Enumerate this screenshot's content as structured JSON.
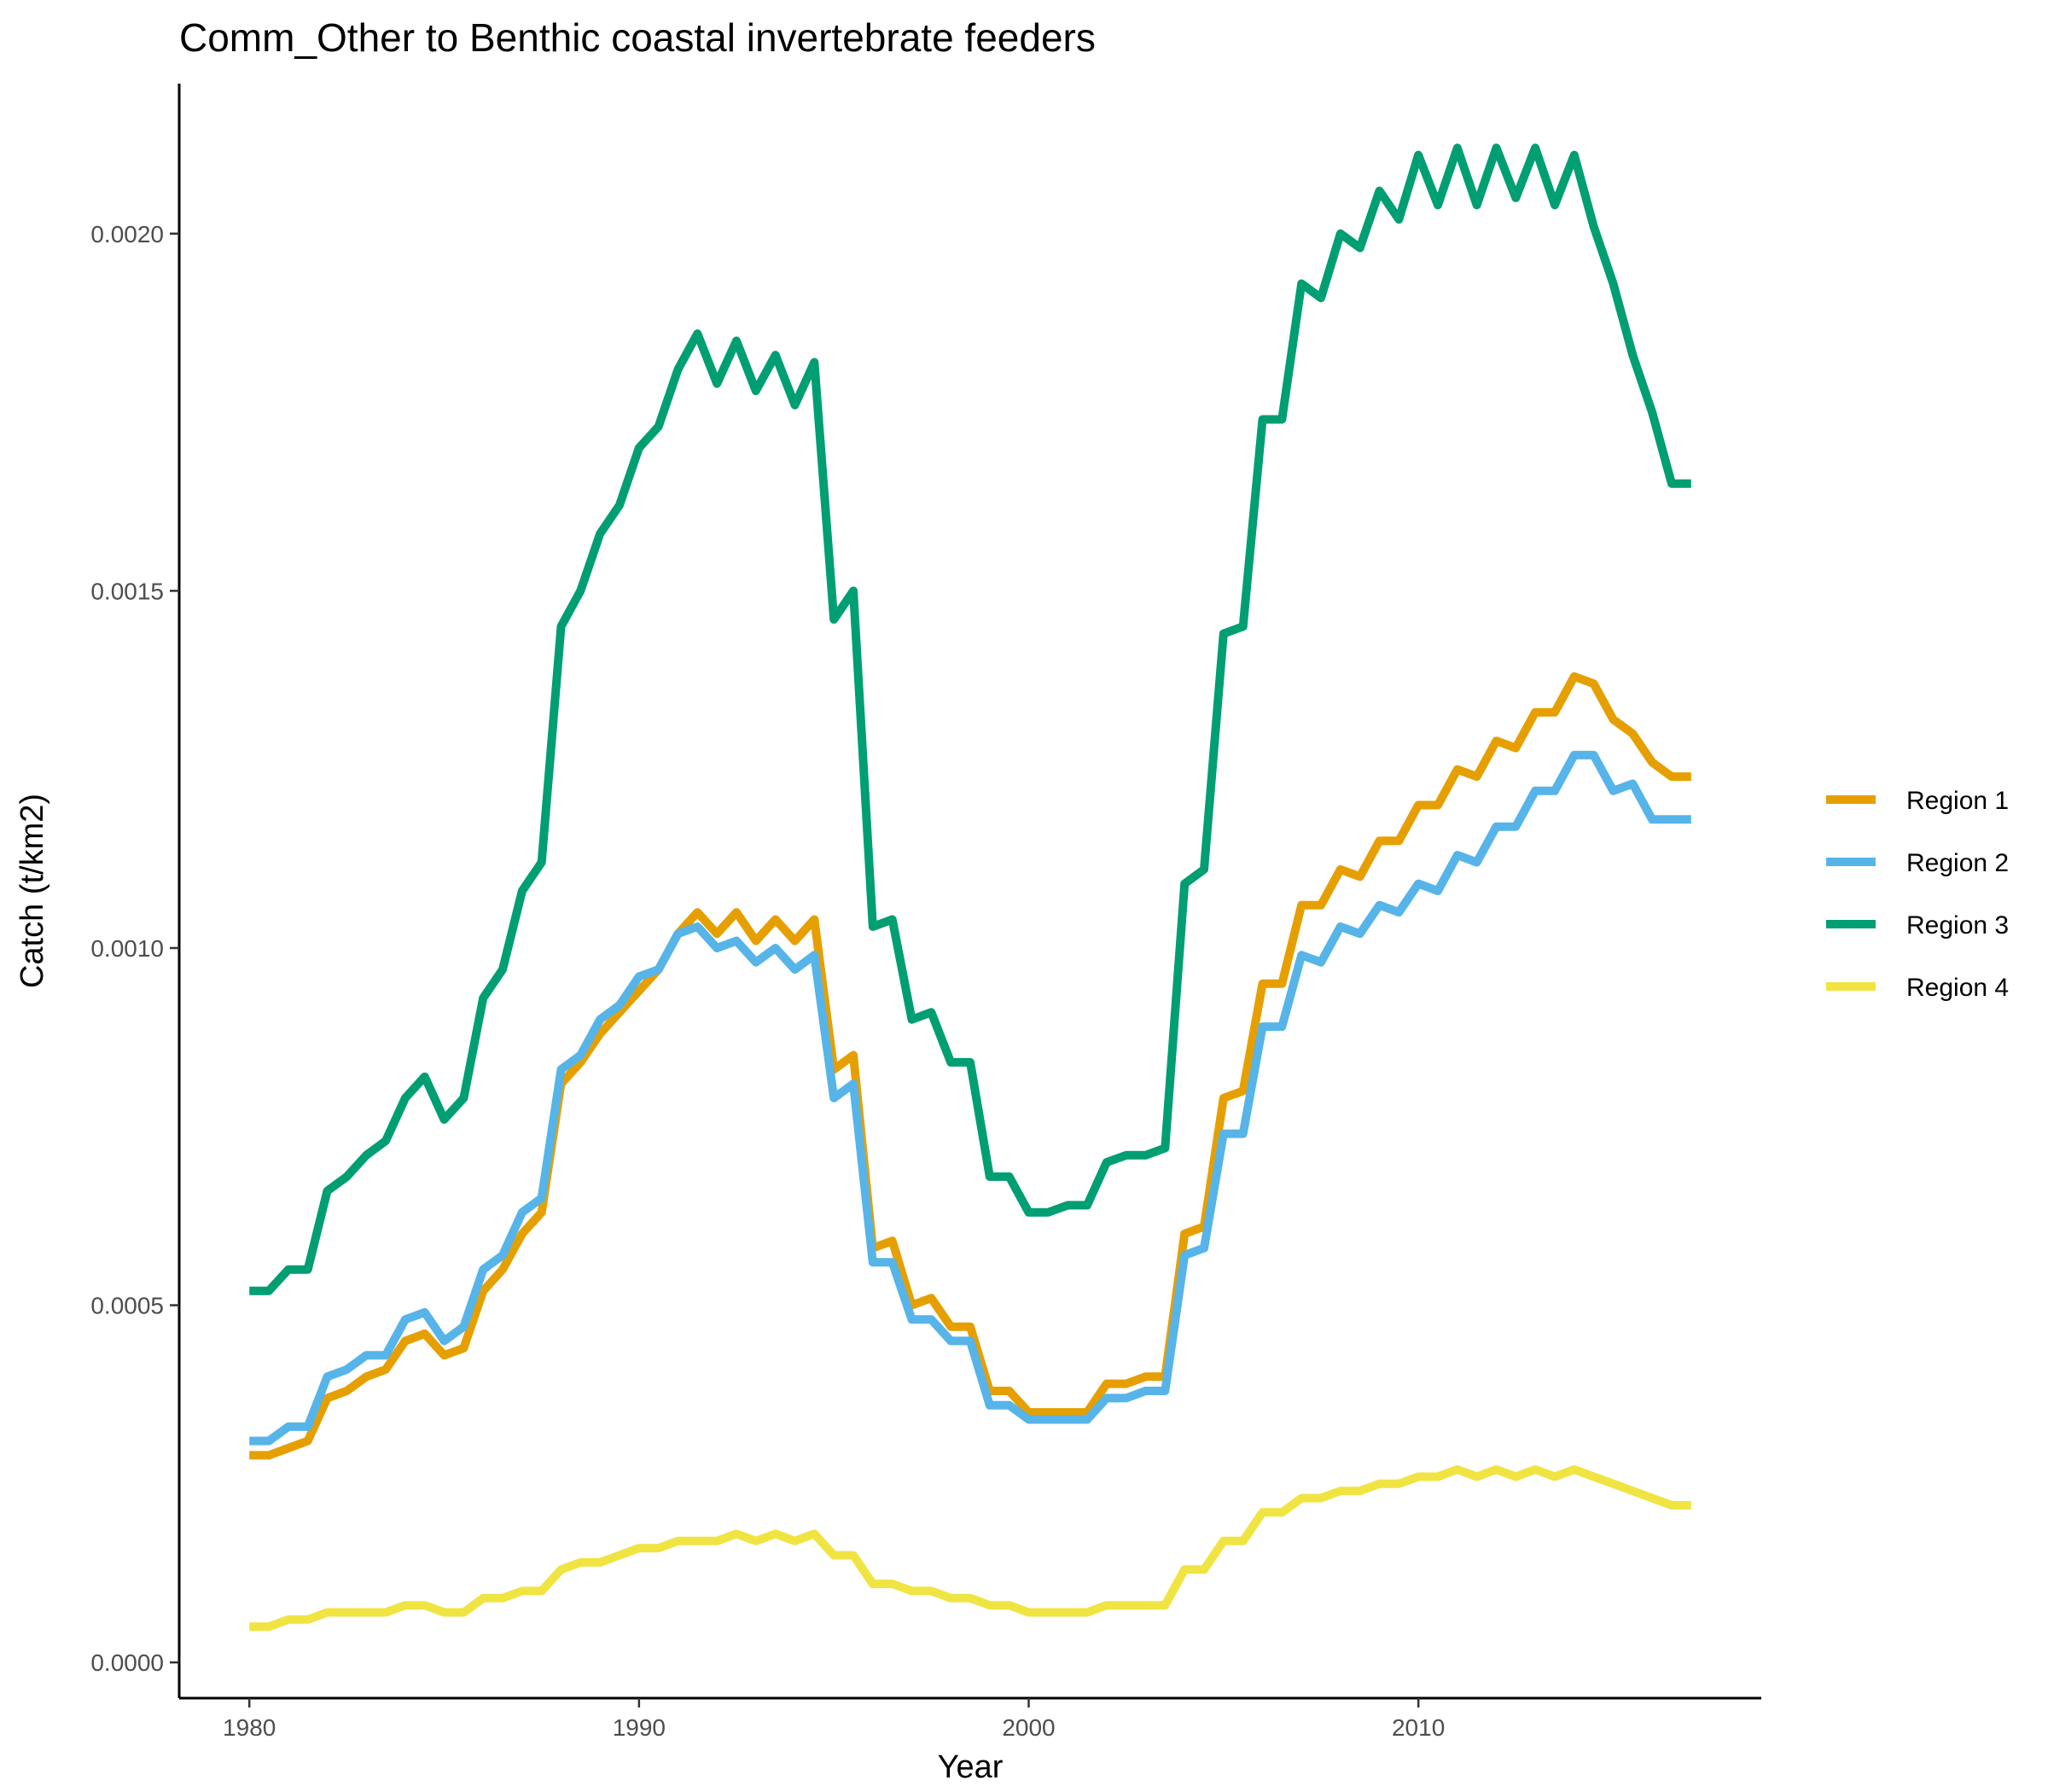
{
  "chart_data": {
    "type": "line",
    "title": "Comm_Other to Benthic coastal invertebrate feeders",
    "xlabel": "Year",
    "ylabel": "Catch (t/km2)",
    "xlim": [
      1978.2,
      2018.8
    ],
    "ylim": [
      -5e-05,
      0.00221
    ],
    "x_ticks": [
      1980,
      1990,
      2000,
      2010
    ],
    "x_tick_labels": [
      "1980",
      "1990",
      "2000",
      "2010"
    ],
    "y_ticks": [
      0.0,
      0.0005,
      0.001,
      0.0015,
      0.002
    ],
    "y_tick_labels": [
      "0.0000",
      "0.0005",
      "0.0010",
      "0.0015",
      "0.0020"
    ],
    "grid": false,
    "legend_position": "right",
    "x": [
      1980,
      1980.5,
      1981,
      1981.5,
      1982,
      1982.5,
      1983,
      1983.5,
      1984,
      1984.5,
      1985,
      1985.5,
      1986,
      1986.5,
      1987,
      1987.5,
      1988,
      1988.5,
      1989,
      1989.5,
      1990,
      1990.5,
      1991,
      1991.5,
      1992,
      1992.5,
      1993,
      1993.5,
      1994,
      1994.5,
      1995,
      1995.5,
      1996,
      1996.5,
      1997,
      1997.5,
      1998,
      1998.5,
      1999,
      1999.5,
      2000,
      2000.5,
      2001,
      2001.5,
      2002,
      2002.5,
      2003,
      2003.5,
      2004,
      2004.5,
      2005,
      2005.5,
      2006,
      2006.5,
      2007,
      2007.5,
      2008,
      2008.5,
      2009,
      2009.5,
      2010,
      2010.5,
      2011,
      2011.5,
      2012,
      2012.5,
      2013,
      2013.5,
      2014,
      2014.5,
      2015,
      2015.5,
      2016,
      2016.5,
      2017
    ],
    "series": [
      {
        "name": "Region 1",
        "color": "#E69F00",
        "values": [
          0.00029,
          0.00029,
          0.0003,
          0.00031,
          0.00037,
          0.00038,
          0.0004,
          0.00041,
          0.00045,
          0.00046,
          0.00043,
          0.00044,
          0.00052,
          0.00055,
          0.0006,
          0.00063,
          0.00081,
          0.00084,
          0.00088,
          0.00091,
          0.00094,
          0.00097,
          0.00102,
          0.00105,
          0.00102,
          0.00105,
          0.00101,
          0.00104,
          0.00101,
          0.00104,
          0.00083,
          0.00085,
          0.00058,
          0.00059,
          0.0005,
          0.00051,
          0.00047,
          0.00047,
          0.00038,
          0.00038,
          0.00035,
          0.00035,
          0.00035,
          0.00035,
          0.00039,
          0.00039,
          0.0004,
          0.0004,
          0.0006,
          0.00061,
          0.00079,
          0.0008,
          0.00095,
          0.00095,
          0.00106,
          0.00106,
          0.00111,
          0.0011,
          0.00115,
          0.00115,
          0.0012,
          0.0012,
          0.00125,
          0.00124,
          0.00129,
          0.00128,
          0.00133,
          0.00133,
          0.00138,
          0.00137,
          0.00132,
          0.0013,
          0.00126,
          0.00124,
          0.00124
        ]
      },
      {
        "name": "Region 2",
        "color": "#56B4E9",
        "values": [
          0.00031,
          0.00031,
          0.00033,
          0.00033,
          0.0004,
          0.00041,
          0.00043,
          0.00043,
          0.00048,
          0.00049,
          0.00045,
          0.00047,
          0.00055,
          0.00057,
          0.00063,
          0.00065,
          0.00083,
          0.00085,
          0.0009,
          0.00092,
          0.00096,
          0.00097,
          0.00102,
          0.00103,
          0.001,
          0.00101,
          0.00098,
          0.001,
          0.00097,
          0.00099,
          0.00079,
          0.00081,
          0.00056,
          0.00056,
          0.00048,
          0.00048,
          0.00045,
          0.00045,
          0.00036,
          0.00036,
          0.00034,
          0.00034,
          0.00034,
          0.00034,
          0.00037,
          0.00037,
          0.00038,
          0.00038,
          0.00057,
          0.00058,
          0.00074,
          0.00074,
          0.00089,
          0.00089,
          0.00099,
          0.00098,
          0.00103,
          0.00102,
          0.00106,
          0.00105,
          0.00109,
          0.00108,
          0.00113,
          0.00112,
          0.00117,
          0.00117,
          0.00122,
          0.00122,
          0.00127,
          0.00127,
          0.00122,
          0.00123,
          0.00118,
          0.00118,
          0.00118
        ]
      },
      {
        "name": "Region 3",
        "color": "#009E73",
        "values": [
          0.00052,
          0.00052,
          0.00055,
          0.00055,
          0.00066,
          0.00068,
          0.00071,
          0.00073,
          0.00079,
          0.00082,
          0.00076,
          0.00079,
          0.00093,
          0.00097,
          0.00108,
          0.00112,
          0.00145,
          0.0015,
          0.00158,
          0.00162,
          0.0017,
          0.00173,
          0.00181,
          0.00186,
          0.00179,
          0.00185,
          0.00178,
          0.00183,
          0.00176,
          0.00182,
          0.00146,
          0.0015,
          0.00103,
          0.00104,
          0.0009,
          0.00091,
          0.00084,
          0.00084,
          0.00068,
          0.00068,
          0.00063,
          0.00063,
          0.00064,
          0.00064,
          0.0007,
          0.00071,
          0.00071,
          0.00072,
          0.00109,
          0.00111,
          0.00144,
          0.00145,
          0.00174,
          0.00174,
          0.00193,
          0.00191,
          0.002,
          0.00198,
          0.00206,
          0.00202,
          0.00211,
          0.00204,
          0.00212,
          0.00204,
          0.00212,
          0.00205,
          0.00212,
          0.00204,
          0.00211,
          0.00201,
          0.00193,
          0.00183,
          0.00175,
          0.00165,
          0.00165
        ]
      },
      {
        "name": "Region 4",
        "color": "#F0E442",
        "values": [
          5e-05,
          5e-05,
          6e-05,
          6e-05,
          7e-05,
          7e-05,
          7e-05,
          7e-05,
          8e-05,
          8e-05,
          7e-05,
          7e-05,
          9e-05,
          9e-05,
          0.0001,
          0.0001,
          0.00013,
          0.00014,
          0.00014,
          0.00015,
          0.00016,
          0.00016,
          0.00017,
          0.00017,
          0.00017,
          0.00018,
          0.00017,
          0.00018,
          0.00017,
          0.00018,
          0.00015,
          0.00015,
          0.00011,
          0.00011,
          0.0001,
          0.0001,
          9e-05,
          9e-05,
          8e-05,
          8e-05,
          7e-05,
          7e-05,
          7e-05,
          7e-05,
          8e-05,
          8e-05,
          8e-05,
          8e-05,
          0.00013,
          0.00013,
          0.00017,
          0.00017,
          0.00021,
          0.00021,
          0.00023,
          0.00023,
          0.00024,
          0.00024,
          0.00025,
          0.00025,
          0.00026,
          0.00026,
          0.00027,
          0.00026,
          0.00027,
          0.00026,
          0.00027,
          0.00026,
          0.00027,
          0.00026,
          0.00025,
          0.00024,
          0.00023,
          0.00022,
          0.00022
        ]
      }
    ]
  }
}
